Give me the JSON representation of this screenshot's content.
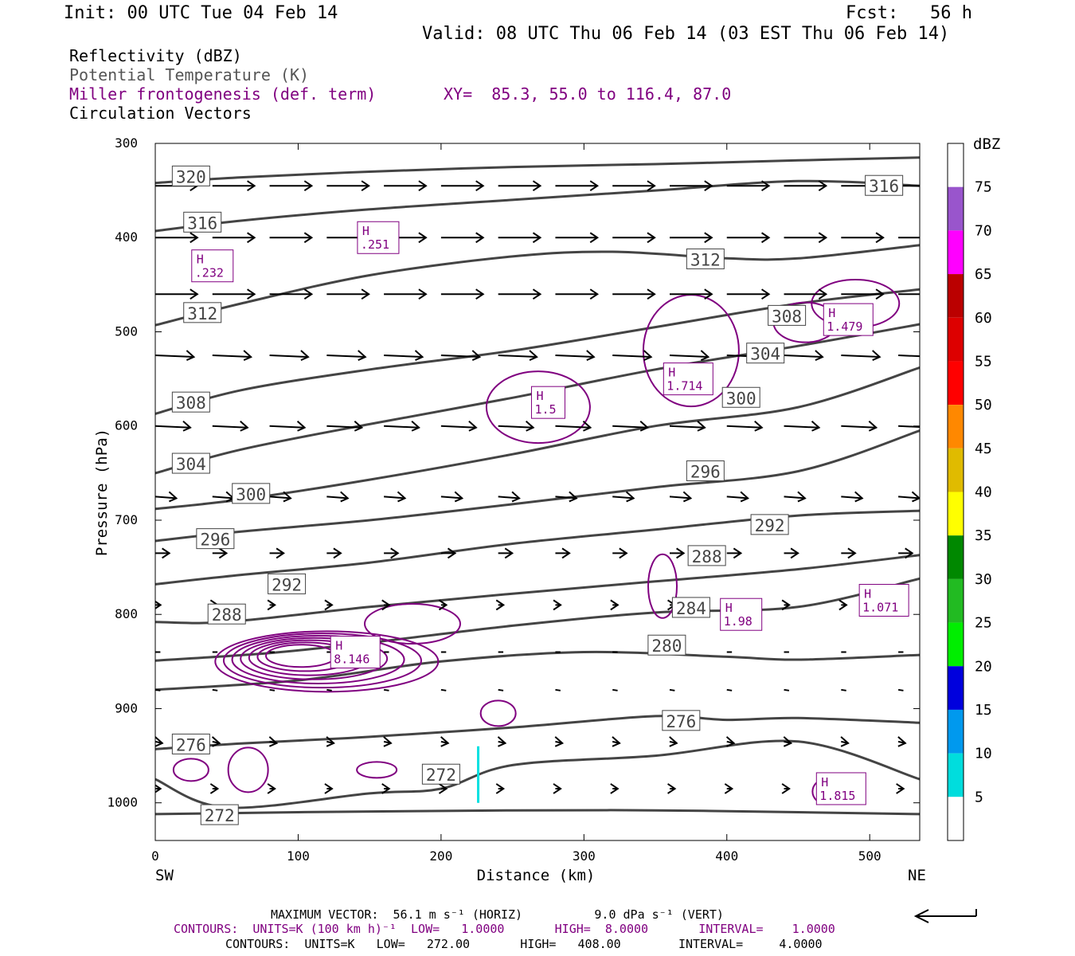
{
  "header": {
    "init": "Init: 00 UTC Tue 04 Feb 14",
    "fcst": "Fcst:   56 h",
    "valid": "Valid: 08 UTC Thu 06 Feb 14 (03 EST Thu 06 Feb 14)"
  },
  "legend": {
    "reflectivity": "Reflectivity (dBZ)",
    "theta": "Potential Temperature (K)",
    "frontogenesis": "Miller frontogenesis (def. term)",
    "xy": "XY=  85.3, 55.0 to 116.4, 87.0",
    "vectors": "Circulation Vectors"
  },
  "colors": {
    "theta": "#444444",
    "frontogenesis": "#800080",
    "reflectivity_5": "#00e0e0"
  },
  "chart_data": {
    "type": "cross-section",
    "xlabel": "Distance (km)",
    "ylabel": "Pressure (hPa)",
    "xlim": [
      0,
      535
    ],
    "ylim": [
      1040,
      300
    ],
    "x_ticks": [
      0,
      100,
      200,
      300,
      400,
      500
    ],
    "y_ticks": [
      300,
      400,
      500,
      600,
      700,
      800,
      900,
      1000
    ],
    "left_end_label": "SW",
    "right_end_label": "NE",
    "colorbar": {
      "title": "dBZ",
      "levels": [
        75,
        70,
        65,
        60,
        55,
        50,
        45,
        40,
        35,
        30,
        25,
        20,
        15,
        10,
        5
      ],
      "colors": [
        "#ffffff",
        "#9955cc",
        "#ff00ff",
        "#bb0000",
        "#dd0000",
        "#ff0000",
        "#ff8800",
        "#e0bb00",
        "#ffff00",
        "#008800",
        "#22bb22",
        "#00ee00",
        "#0000dd",
        "#0099ee",
        "#00dddd",
        "#ffffff"
      ]
    },
    "theta_contours": [
      {
        "level": 320,
        "label": "320",
        "points": [
          [
            0,
            342
          ],
          [
            60,
            336
          ],
          [
            150,
            330
          ],
          [
            250,
            325
          ],
          [
            350,
            322
          ],
          [
            450,
            318
          ],
          [
            535,
            315
          ]
        ],
        "label_at": [
          25,
          335
        ]
      },
      {
        "level": 316,
        "label": "316",
        "points": [
          [
            0,
            393
          ],
          [
            60,
            382
          ],
          [
            150,
            370
          ],
          [
            250,
            360
          ],
          [
            350,
            350
          ],
          [
            450,
            340
          ],
          [
            535,
            345
          ]
        ],
        "label_at": [
          33,
          384
        ],
        "label2": "316",
        "label2_at": [
          510,
          345
        ]
      },
      {
        "level": 312,
        "label": "312",
        "points": [
          [
            0,
            493
          ],
          [
            60,
            470
          ],
          [
            150,
            440
          ],
          [
            250,
            420
          ],
          [
            320,
            415
          ],
          [
            400,
            422
          ],
          [
            450,
            422
          ],
          [
            535,
            408
          ]
        ],
        "label_at": [
          33,
          480
        ],
        "label2": "312",
        "label2_at": [
          385,
          423
        ]
      },
      {
        "level": 308,
        "label": "308",
        "points": [
          [
            0,
            587
          ],
          [
            60,
            562
          ],
          [
            150,
            540
          ],
          [
            250,
            520
          ],
          [
            350,
            495
          ],
          [
            450,
            470
          ],
          [
            535,
            455
          ]
        ],
        "label_at": [
          25,
          575
        ],
        "label2": "308",
        "label2_at": [
          442,
          483
        ]
      },
      {
        "level": 304,
        "label": "304",
        "points": [
          [
            0,
            650
          ],
          [
            60,
            625
          ],
          [
            150,
            598
          ],
          [
            250,
            570
          ],
          [
            350,
            540
          ],
          [
            450,
            515
          ],
          [
            535,
            492
          ]
        ],
        "label_at": [
          25,
          640
        ],
        "label2": "304",
        "label2_at": [
          427,
          523
        ]
      },
      {
        "level": 300,
        "label": "300",
        "points": [
          [
            0,
            688
          ],
          [
            60,
            678
          ],
          [
            150,
            657
          ],
          [
            250,
            630
          ],
          [
            350,
            600
          ],
          [
            450,
            580
          ],
          [
            535,
            538
          ]
        ],
        "label_at": [
          67,
          672
        ],
        "label2": "300",
        "label2_at": [
          410,
          570
        ]
      },
      {
        "level": 296,
        "label": "296",
        "points": [
          [
            0,
            722
          ],
          [
            60,
            712
          ],
          [
            150,
            700
          ],
          [
            250,
            683
          ],
          [
            350,
            665
          ],
          [
            450,
            648
          ],
          [
            535,
            605
          ]
        ],
        "label_at": [
          42,
          720
        ],
        "label2": "296",
        "label2_at": [
          385,
          648
        ]
      },
      {
        "level": 292,
        "label": "292",
        "points": [
          [
            0,
            768
          ],
          [
            60,
            758
          ],
          [
            150,
            745
          ],
          [
            250,
            725
          ],
          [
            350,
            710
          ],
          [
            450,
            695
          ],
          [
            535,
            690
          ]
        ],
        "label_at": [
          92,
          768
        ],
        "label2": "292",
        "label2_at": [
          430,
          705
        ]
      },
      {
        "level": 288,
        "label": "288",
        "points": [
          [
            0,
            808
          ],
          [
            50,
            808
          ],
          [
            150,
            792
          ],
          [
            250,
            778
          ],
          [
            350,
            765
          ],
          [
            450,
            752
          ],
          [
            535,
            737
          ]
        ],
        "label_at": [
          50,
          800
        ],
        "label2": "288",
        "label2_at": [
          386,
          738
        ]
      },
      {
        "level": 284,
        "label": "284",
        "points": [
          [
            0,
            849
          ],
          [
            80,
            841
          ],
          [
            150,
            830
          ],
          [
            250,
            812
          ],
          [
            350,
            798
          ],
          [
            450,
            792
          ],
          [
            535,
            762
          ]
        ],
        "label_at": [
          375,
          793
        ]
      },
      {
        "level": 280,
        "label": "280",
        "points": [
          [
            0,
            880
          ],
          [
            100,
            870
          ],
          [
            200,
            850
          ],
          [
            300,
            840
          ],
          [
            400,
            845
          ],
          [
            450,
            848
          ],
          [
            535,
            843
          ]
        ],
        "label_at": [
          358,
          833
        ]
      },
      {
        "level": 276,
        "label": "276",
        "points": [
          [
            0,
            943
          ],
          [
            60,
            937
          ],
          [
            150,
            930
          ],
          [
            250,
            920
          ],
          [
            350,
            908
          ],
          [
            400,
            912
          ],
          [
            450,
            910
          ],
          [
            535,
            915
          ]
        ],
        "label_at": [
          25,
          938
        ],
        "label2": "276",
        "label2_at": [
          368,
          913
        ]
      },
      {
        "level": 272,
        "label": "272",
        "points": [
          [
            0,
            975
          ],
          [
            50,
            1005
          ],
          [
            150,
            990
          ],
          [
            200,
            985
          ],
          [
            250,
            960
          ],
          [
            350,
            950
          ],
          [
            450,
            935
          ],
          [
            535,
            975
          ]
        ],
        "label_at": [
          200,
          970
        ]
      },
      {
        "level": 272,
        "label": "272",
        "points": [
          [
            0,
            1012
          ],
          [
            100,
            1010
          ],
          [
            250,
            1008
          ],
          [
            350,
            1008
          ],
          [
            450,
            1010
          ],
          [
            535,
            1012
          ]
        ],
        "label_at": [
          45,
          1013
        ]
      }
    ],
    "frontogenesis_maxima": [
      {
        "label": "H",
        "value": ".232",
        "at": [
          40,
          430
        ]
      },
      {
        "label": "H",
        "value": ".251",
        "at": [
          156,
          400
        ]
      },
      {
        "label": "H",
        "value": "1.479",
        "at": [
          485,
          487
        ]
      },
      {
        "label": "H",
        "value": "1.714",
        "at": [
          373,
          550
        ]
      },
      {
        "label": "H",
        "value": "1.5",
        "at": [
          275,
          575
        ]
      },
      {
        "label": "H",
        "value": "8.146",
        "at": [
          140,
          840
        ]
      },
      {
        "label": "H",
        "value": "1.98",
        "at": [
          410,
          800
        ]
      },
      {
        "label": "H",
        "value": "1.071",
        "at": [
          510,
          785
        ]
      },
      {
        "label": "H",
        "value": "1.815",
        "at": [
          480,
          985
        ]
      }
    ],
    "vector_rows": [
      {
        "p": 345,
        "len": 24,
        "dy": 0
      },
      {
        "p": 400,
        "len": 24,
        "dy": 0
      },
      {
        "p": 460,
        "len": 24,
        "dy": 0
      },
      {
        "p": 525,
        "len": 22,
        "dy": 1
      },
      {
        "p": 600,
        "len": 20,
        "dy": 1
      },
      {
        "p": 675,
        "len": 12,
        "dy": 1
      },
      {
        "p": 735,
        "len": 8,
        "dy": 0
      },
      {
        "p": 790,
        "len": 3,
        "dy": 0
      },
      {
        "p": 840,
        "len": 2,
        "dy": 0
      },
      {
        "p": 880,
        "len": 2,
        "dy": 1
      },
      {
        "p": 935,
        "len": 4,
        "dy": 1
      },
      {
        "p": 985,
        "len": 3,
        "dy": 0
      }
    ]
  },
  "footer": {
    "max_vector": "MAXIMUM VECTOR:  56.1 m s⁻¹ (HORIZ)          9.0 dPa s⁻¹ (VERT)",
    "contours1": "CONTOURS:  UNITS=K (100 km h)⁻¹  LOW=   1.0000       HIGH=  8.0000       INTERVAL=    1.0000",
    "contours2": "CONTOURS:  UNITS=K   LOW=   272.00       HIGH=   408.00        INTERVAL=     4.0000"
  }
}
